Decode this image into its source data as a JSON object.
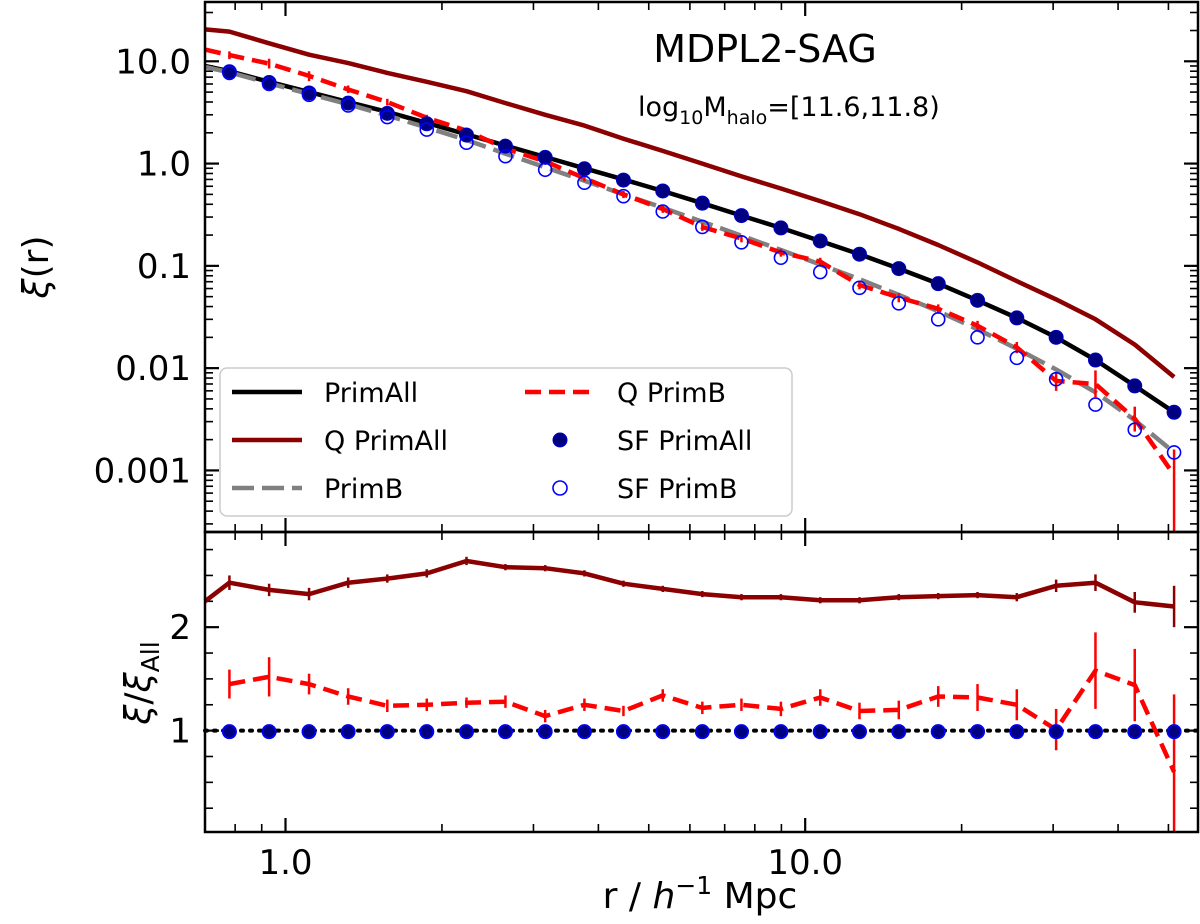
{
  "chart_data": {
    "type": "line",
    "title": "MDPL2-SAG",
    "annotation": {
      "prefix": "log",
      "prefix_sub": "10",
      "var": "M",
      "var_sub": "halo",
      "range": "=[11.6,11.8)"
    },
    "x": [
      0.78,
      0.93,
      1.11,
      1.32,
      1.57,
      1.87,
      2.23,
      2.65,
      3.16,
      3.76,
      4.47,
      5.32,
      6.34,
      7.54,
      8.98,
      10.69,
      12.72,
      15.14,
      18.03,
      21.46,
      25.54,
      30.4,
      36.19,
      43.07,
      51.27
    ],
    "xlabel": {
      "prefix": "r / ",
      "italic": "h",
      "sup": "−1",
      "suffix": " Mpc"
    },
    "xlim": [
      0.7,
      57
    ],
    "xticks": [
      {
        "value": 1,
        "label": "1.0"
      },
      {
        "value": 10,
        "label": "10.0"
      }
    ],
    "top_panel": {
      "ylabel": {
        "symbol": "ξ",
        "suffix": "(r)"
      },
      "ylim": [
        0.00025,
        38
      ],
      "yscale": "log",
      "yticks": [
        {
          "value": 10,
          "label": "10.0"
        },
        {
          "value": 1,
          "label": "1.0"
        },
        {
          "value": 0.1,
          "label": "0.1"
        },
        {
          "value": 0.01,
          "label": "0.01"
        },
        {
          "value": 0.001,
          "label": "0.001"
        }
      ],
      "legend_location": "lower-left",
      "series": [
        {
          "name": "Q PrimAll",
          "style": "line",
          "color": "#8b0000",
          "x": [
            0.7,
            0.78,
            0.93,
            1.11,
            1.32,
            1.57,
            1.87,
            2.23,
            2.65,
            3.16,
            3.76,
            4.47,
            5.32,
            6.34,
            7.54,
            8.98,
            10.69,
            12.72,
            15.14,
            18.03,
            21.46,
            25.54,
            30.4,
            36.19,
            43.07,
            51.27
          ],
          "values": [
            20.5,
            19.5,
            15.0,
            11.6,
            9.6,
            7.7,
            6.3,
            5.1,
            3.9,
            3.0,
            2.35,
            1.75,
            1.33,
            1.0,
            0.75,
            0.57,
            0.43,
            0.32,
            0.23,
            0.16,
            0.108,
            0.071,
            0.047,
            0.03,
            0.017,
            0.0082
          ]
        },
        {
          "name": "PrimAll",
          "style": "line",
          "color": "#000000",
          "x": [
            0.7,
            0.78,
            0.93,
            1.11,
            1.32,
            1.57,
            1.87,
            2.23,
            2.65,
            3.16,
            3.76,
            4.47,
            5.32,
            6.34,
            7.54,
            8.98,
            10.69,
            12.72,
            15.14,
            18.03,
            21.46,
            25.54,
            30.4,
            36.19,
            43.07,
            51.27
          ],
          "values": [
            9.0,
            8.0,
            6.3,
            5.0,
            4.0,
            3.2,
            2.5,
            1.93,
            1.5,
            1.16,
            0.9,
            0.7,
            0.54,
            0.41,
            0.31,
            0.235,
            0.175,
            0.13,
            0.094,
            0.067,
            0.046,
            0.031,
            0.02,
            0.012,
            0.0067,
            0.0037
          ]
        },
        {
          "name": "PrimB",
          "style": "dashed",
          "color": "#808080",
          "x": [
            0.7,
            0.78,
            0.93,
            1.11,
            1.32,
            1.57,
            1.87,
            2.23,
            2.65,
            3.16,
            3.76,
            4.47,
            5.32,
            6.34,
            7.54,
            8.98,
            10.69,
            12.72,
            15.14,
            18.03,
            21.46,
            25.54,
            30.4,
            36.19,
            43.07,
            51.27
          ],
          "values": [
            8.8,
            7.8,
            6.1,
            4.8,
            3.8,
            2.95,
            2.25,
            1.7,
            1.25,
            0.92,
            0.68,
            0.5,
            0.37,
            0.27,
            0.197,
            0.143,
            0.103,
            0.074,
            0.052,
            0.036,
            0.024,
            0.0155,
            0.0097,
            0.0058,
            0.0031,
            0.0015
          ]
        },
        {
          "name": "Q PrimB",
          "style": "dashed",
          "color": "#ff0000",
          "x": [
            0.7,
            0.78,
            0.93,
            1.11,
            1.32,
            1.57,
            1.87,
            2.23,
            2.65,
            3.16,
            3.76,
            4.47,
            5.32,
            6.34,
            7.54,
            8.98,
            10.69,
            12.72,
            15.14,
            18.03,
            21.46,
            25.54,
            30.4,
            36.19,
            43.07,
            51.27
          ],
          "values": [
            13.0,
            11.5,
            9.5,
            7.2,
            5.3,
            4.0,
            2.8,
            2.1,
            1.4,
            1.05,
            0.72,
            0.5,
            0.36,
            0.24,
            0.185,
            0.135,
            0.11,
            0.065,
            0.049,
            0.038,
            0.026,
            0.016,
            0.0075,
            0.007,
            0.0032,
            0.0009
          ],
          "error_low": [
            null,
            10.5,
            8.5,
            6.4,
            4.9,
            3.7,
            2.6,
            1.95,
            1.3,
            0.98,
            0.67,
            0.46,
            0.33,
            0.22,
            0.17,
            0.123,
            0.1,
            0.059,
            0.044,
            0.034,
            0.023,
            0.014,
            0.006,
            0.0052,
            0.0024,
            0.0002
          ],
          "error_high": [
            null,
            12.5,
            10.6,
            8.0,
            5.8,
            4.3,
            3.0,
            2.25,
            1.5,
            1.12,
            0.77,
            0.54,
            0.39,
            0.26,
            0.2,
            0.147,
            0.12,
            0.071,
            0.054,
            0.042,
            0.029,
            0.018,
            0.009,
            0.0095,
            0.0042,
            0.0016
          ]
        },
        {
          "name": "SF PrimAll",
          "style": "filled-markers",
          "color": "#000080",
          "x": [
            0.78,
            0.93,
            1.11,
            1.32,
            1.57,
            1.87,
            2.23,
            2.65,
            3.16,
            3.76,
            4.47,
            5.32,
            6.34,
            7.54,
            8.98,
            10.69,
            12.72,
            15.14,
            18.03,
            21.46,
            25.54,
            30.4,
            36.19,
            43.07,
            51.27
          ],
          "values": [
            7.9,
            6.2,
            4.9,
            3.9,
            3.1,
            2.45,
            1.9,
            1.48,
            1.15,
            0.89,
            0.69,
            0.54,
            0.41,
            0.31,
            0.235,
            0.175,
            0.13,
            0.094,
            0.067,
            0.046,
            0.031,
            0.02,
            0.012,
            0.0067,
            0.0037
          ]
        },
        {
          "name": "SF PrimB",
          "style": "open-markers",
          "color": "#0000ff",
          "x": [
            0.78,
            0.93,
            1.11,
            1.32,
            1.57,
            1.87,
            2.23,
            2.65,
            3.16,
            3.76,
            4.47,
            5.32,
            6.34,
            7.54,
            8.98,
            10.69,
            12.72,
            15.14,
            18.03,
            21.46,
            25.54,
            30.4,
            36.19,
            43.07,
            51.27
          ],
          "values": [
            7.7,
            6.0,
            4.7,
            3.7,
            2.85,
            2.15,
            1.6,
            1.18,
            0.87,
            0.65,
            0.48,
            0.34,
            0.24,
            0.17,
            0.12,
            0.087,
            0.061,
            0.043,
            0.03,
            0.02,
            0.0126,
            0.0078,
            0.0044,
            0.0025,
            0.0015
          ]
        }
      ]
    },
    "bottom_panel": {
      "ylabel": {
        "symbol": "ξ",
        "sep": "/",
        "symbol2": "ξ",
        "sub": "All"
      },
      "ylim": [
        0.02,
        2.92
      ],
      "yscale": "linear",
      "yticks": [
        {
          "value": 1,
          "label": "1"
        },
        {
          "value": 2,
          "label": "2"
        }
      ],
      "reference_line": {
        "value": 1,
        "style": "dotted",
        "color": "#000000"
      },
      "series": [
        {
          "name": "Q PrimAll",
          "style": "line",
          "color": "#8b0000",
          "x": [
            0.7,
            0.78,
            0.93,
            1.11,
            1.32,
            1.57,
            1.87,
            2.23,
            2.65,
            3.16,
            3.76,
            4.47,
            5.32,
            6.34,
            7.54,
            8.98,
            10.69,
            12.72,
            15.14,
            18.03,
            21.46,
            25.54,
            30.4,
            36.19,
            43.07,
            51.27
          ],
          "values": [
            2.25,
            2.43,
            2.36,
            2.32,
            2.43,
            2.47,
            2.52,
            2.64,
            2.58,
            2.57,
            2.52,
            2.42,
            2.37,
            2.32,
            2.29,
            2.29,
            2.26,
            2.26,
            2.29,
            2.3,
            2.31,
            2.29,
            2.4,
            2.43,
            2.24,
            2.2
          ],
          "error": [
            null,
            0.07,
            0.06,
            0.06,
            0.05,
            0.04,
            0.04,
            0.04,
            0.03,
            0.03,
            0.03,
            0.03,
            0.03,
            0.03,
            0.03,
            0.03,
            0.03,
            0.03,
            0.03,
            0.03,
            0.03,
            0.04,
            0.06,
            0.08,
            0.1,
            0.2
          ]
        },
        {
          "name": "Q PrimB",
          "style": "dashed",
          "color": "#ff0000",
          "x": [
            0.78,
            0.93,
            1.11,
            1.32,
            1.57,
            1.87,
            2.23,
            2.65,
            3.16,
            3.76,
            4.47,
            5.32,
            6.34,
            7.54,
            8.98,
            10.69,
            12.72,
            15.14,
            18.03,
            21.46,
            25.54,
            30.4,
            36.19,
            43.07,
            51.27
          ],
          "values": [
            1.45,
            1.52,
            1.45,
            1.33,
            1.24,
            1.25,
            1.27,
            1.28,
            1.14,
            1.25,
            1.19,
            1.34,
            1.22,
            1.25,
            1.21,
            1.32,
            1.19,
            1.2,
            1.33,
            1.32,
            1.25,
            1.01,
            1.58,
            1.44,
            0.6
          ],
          "error": [
            0.14,
            0.19,
            0.1,
            0.08,
            0.06,
            0.06,
            0.05,
            0.06,
            0.06,
            0.06,
            0.05,
            0.06,
            0.06,
            0.06,
            0.07,
            0.08,
            0.08,
            0.09,
            0.1,
            0.13,
            0.15,
            0.2,
            0.37,
            0.35,
            0.75
          ]
        },
        {
          "name": "SF PrimAll",
          "style": "filled-markers",
          "color": "#000080",
          "x": [
            0.78,
            0.93,
            1.11,
            1.32,
            1.57,
            1.87,
            2.23,
            2.65,
            3.16,
            3.76,
            4.47,
            5.32,
            6.34,
            7.54,
            8.98,
            10.69,
            12.72,
            15.14,
            18.03,
            21.46,
            25.54,
            30.4,
            36.19,
            43.07,
            51.27
          ],
          "values": [
            0.99,
            0.99,
            0.99,
            0.99,
            0.99,
            0.99,
            0.99,
            0.99,
            0.99,
            0.99,
            0.99,
            0.99,
            0.99,
            0.99,
            0.99,
            0.99,
            0.99,
            0.99,
            0.99,
            0.99,
            0.99,
            0.99,
            0.99,
            0.99,
            0.99
          ]
        },
        {
          "name": "SF PrimB",
          "style": "open-markers",
          "color": "#0000ff",
          "x": [
            0.78,
            0.93,
            1.11,
            1.32,
            1.57,
            1.87,
            2.23,
            2.65,
            3.16,
            3.76,
            4.47,
            5.32,
            6.34,
            7.54,
            8.98,
            10.69,
            12.72,
            15.14,
            18.03,
            21.46,
            25.54,
            30.4,
            36.19,
            43.07,
            51.27
          ],
          "values": [
            0.99,
            0.99,
            0.99,
            0.99,
            0.99,
            0.99,
            0.99,
            0.99,
            0.99,
            0.99,
            0.99,
            0.99,
            0.99,
            0.99,
            0.99,
            0.99,
            0.99,
            0.99,
            0.99,
            0.99,
            0.99,
            0.99,
            0.99,
            0.99,
            0.99
          ]
        }
      ]
    },
    "legend": [
      {
        "label": "PrimAll",
        "style": "line",
        "color": "#000000"
      },
      {
        "label": "Q PrimAll",
        "style": "line",
        "color": "#8b0000"
      },
      {
        "label": "PrimB",
        "style": "dashed",
        "color": "#808080"
      },
      {
        "label": "Q PrimB",
        "style": "dashed",
        "color": "#ff0000"
      },
      {
        "label": "SF PrimAll",
        "style": "filled-markers",
        "color": "#000080"
      },
      {
        "label": "SF PrimB",
        "style": "open-markers",
        "color": "#0000ff"
      }
    ]
  }
}
